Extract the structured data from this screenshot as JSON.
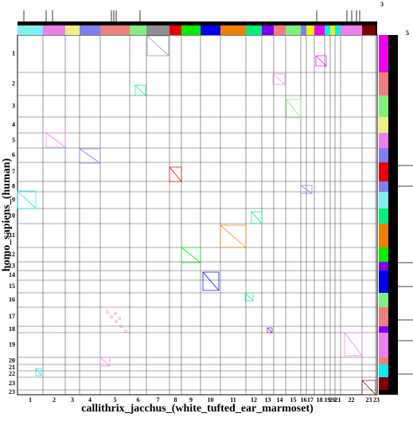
{
  "chart_data": {
    "type": "dotplot",
    "xlabel": "callithrix_jacchus_(white_tufted_ear_marmoset)",
    "ylabel": "homo_sapiens_(human)",
    "categories": [
      "1",
      "2",
      "3",
      "4",
      "5",
      "6",
      "7",
      "8",
      "9",
      "10",
      "11",
      "12",
      "13",
      "14",
      "15",
      "16",
      "17",
      "18",
      "19",
      "20",
      "21",
      "22",
      "23",
      "23"
    ],
    "category_colors": [
      "#7fefef",
      "#ef7fef",
      "#efef7f",
      "#7f7fef",
      "#ef7f7f",
      "#7fef7f",
      "#909090",
      "#ef0000",
      "#00ef00",
      "#0000ef",
      "#ef7f00",
      "#00ef7f",
      "#7f00ef",
      "#ef7f7f",
      "#7fef7f",
      "#7f7fef",
      "#efef00",
      "#ef00ef",
      "#00efef",
      "#efef00",
      "#00efef",
      "#ef7fef",
      "#7f0000",
      "#000000"
    ],
    "y_categories": [
      "1",
      "2",
      "3",
      "4",
      "5",
      "6",
      "7",
      "8",
      "9",
      "10",
      "11",
      "12",
      "13",
      "14",
      "15",
      "16",
      "17",
      "18",
      "19",
      "20",
      "21",
      "22",
      "23",
      "23"
    ],
    "y_category_colors": [
      "#ef00ef",
      "#ef7f7f",
      "#7fef7f",
      "#efef7f",
      "#ef7fef",
      "#7f7fef",
      "#ef0000",
      "#7f7fef",
      "#7fefef",
      "#00ef7f",
      "#ef7f00",
      "#00ef00",
      "#7f00ef",
      "#0000ef",
      "#0000ef",
      "#7fef7f",
      "#ef7f7f",
      "#7f00ef",
      "#ef7fef",
      "#ef7f7f",
      "#00efef",
      "#00efef",
      "#7f0000",
      "#000000"
    ],
    "top_track_label": "3",
    "side_track_label": "5"
  }
}
